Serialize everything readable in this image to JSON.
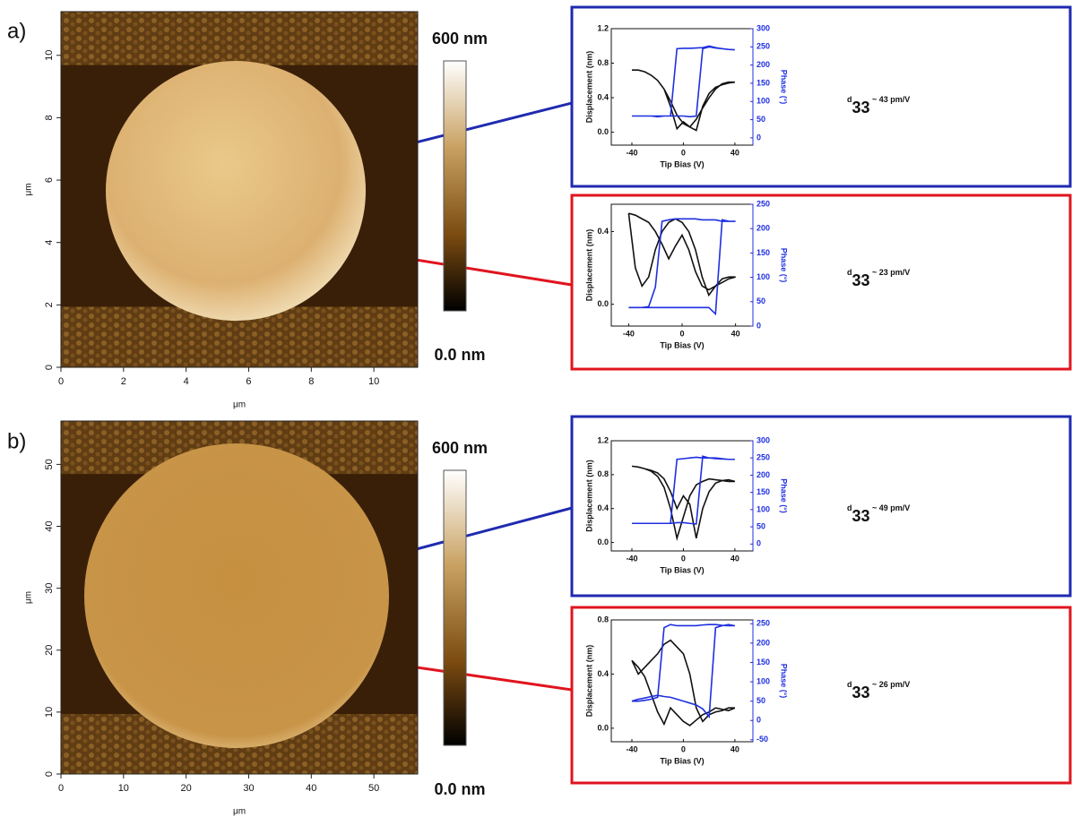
{
  "chart_data": [
    {
      "type": "image",
      "panel_label": "a)",
      "xlabel": "μm",
      "ylabel": "μm",
      "xlim": [
        0,
        11.4
      ],
      "ylim": [
        0,
        11.4
      ],
      "xticks": [
        0,
        2,
        4,
        6,
        8,
        10
      ],
      "yticks": [
        0,
        2,
        4,
        6,
        8,
        10
      ],
      "colorbar_top": "600 nm",
      "colorbar_bottom": "0.0 nm"
    },
    {
      "type": "line",
      "xlabel": "Tip Bias (V)",
      "ylabel": "Displacement (nm)",
      "y2label": "Phase (°)",
      "annotation": {
        "main": "d",
        "sub": "33",
        "rest": " ~ 43 pm/V"
      },
      "xlim": [
        -56,
        54
      ],
      "xticks": [
        -40,
        0,
        40
      ],
      "ylim": [
        -0.15,
        1.2
      ],
      "yticks": [
        {
          "value": 0,
          "label": "0.0"
        },
        0.4,
        0.8,
        1.2
      ],
      "y2lim": [
        -20,
        300
      ],
      "y2ticks": [
        0,
        50,
        100,
        150,
        200,
        250,
        300
      ],
      "x": [
        -40,
        -35,
        -30,
        -25,
        -20,
        -15,
        -10,
        -5,
        0,
        5,
        10,
        15,
        20,
        25,
        30,
        35,
        40,
        35,
        30,
        25,
        20,
        15,
        10,
        5,
        0,
        -5,
        -10,
        -15,
        -20,
        -25,
        -30,
        -35,
        -40
      ],
      "series": [
        {
          "color": "#111111",
          "values": [
            0.72,
            0.72,
            0.7,
            0.66,
            0.6,
            0.5,
            0.36,
            0.2,
            0.1,
            0.06,
            0.02,
            0.3,
            0.45,
            0.52,
            0.55,
            0.57,
            0.58,
            0.58,
            0.56,
            0.5,
            0.4,
            0.28,
            0.15,
            0.06,
            0.12,
            0.04,
            0.3,
            0.5,
            0.6,
            0.66,
            0.7,
            0.72,
            0.72
          ]
        },
        {
          "color": "#1f2fe0",
          "axis": "y2",
          "values": [
            60,
            60,
            60,
            60,
            60,
            60,
            60,
            60,
            60,
            58,
            60,
            245,
            250,
            247,
            245,
            243,
            242,
            243,
            245,
            248,
            252,
            248,
            247,
            246,
            246,
            245,
            60,
            60,
            58,
            60,
            60,
            60,
            60
          ]
        }
      ]
    },
    {
      "type": "line",
      "xlabel": "Tip Bias (V)",
      "ylabel": "Displacement (nm)",
      "y2label": "Phase (°)",
      "annotation": {
        "main": "d",
        "sub": "33",
        "rest": " ~ 23 pm/V"
      },
      "xlim": [
        -53,
        53
      ],
      "xticks": [
        -40,
        0,
        40
      ],
      "ylim": [
        -0.12,
        0.55
      ],
      "yticks": [
        {
          "value": 0,
          "label": "0.0"
        },
        0.4
      ],
      "y2lim": [
        0,
        250
      ],
      "y2ticks": [
        0,
        50,
        100,
        150,
        200,
        250
      ],
      "x": [
        -40,
        -35,
        -30,
        -25,
        -20,
        -15,
        -10,
        -5,
        0,
        5,
        10,
        15,
        20,
        25,
        30,
        35,
        40,
        35,
        30,
        25,
        20,
        15,
        10,
        5,
        0,
        -5,
        -10,
        -15,
        -20,
        -25,
        -30,
        -35,
        -40
      ],
      "series": [
        {
          "color": "#111111",
          "values": [
            0.5,
            0.49,
            0.47,
            0.45,
            0.4,
            0.33,
            0.25,
            0.32,
            0.38,
            0.3,
            0.18,
            0.1,
            0.08,
            0.1,
            0.12,
            0.14,
            0.15,
            0.15,
            0.14,
            0.1,
            0.05,
            0.15,
            0.3,
            0.4,
            0.45,
            0.47,
            0.45,
            0.4,
            0.3,
            0.15,
            0.1,
            0.2,
            0.5
          ]
        },
        {
          "color": "#1f2fe0",
          "axis": "y2",
          "values": [
            38,
            38,
            38,
            38,
            38,
            38,
            38,
            38,
            38,
            38,
            38,
            38,
            38,
            25,
            218,
            215,
            215,
            215,
            215,
            218,
            218,
            218,
            220,
            220,
            220,
            220,
            218,
            215,
            80,
            40,
            38,
            38,
            38
          ]
        }
      ]
    },
    {
      "type": "image",
      "panel_label": "b)",
      "xlabel": "μm",
      "ylabel": "μm",
      "xlim": [
        0,
        57
      ],
      "ylim": [
        0,
        57
      ],
      "xticks": [
        0,
        10,
        20,
        30,
        40,
        50
      ],
      "yticks": [
        0,
        10,
        20,
        30,
        40,
        50
      ],
      "colorbar_top": "600 nm",
      "colorbar_bottom": "0.0 nm"
    },
    {
      "type": "line",
      "xlabel": "Tip Bias (V)",
      "ylabel": "Displacement (nm)",
      "y2label": "Phase (°)",
      "annotation": {
        "main": "d",
        "sub": "33",
        "rest": " ~ 49 pm/V"
      },
      "xlim": [
        -56,
        54
      ],
      "xticks": [
        -40,
        0,
        40
      ],
      "ylim": [
        -0.1,
        1.2
      ],
      "yticks": [
        {
          "value": 0,
          "label": "0.0"
        },
        0.4,
        0.8,
        1.2
      ],
      "y2lim": [
        -20,
        300
      ],
      "y2ticks": [
        0,
        50,
        100,
        150,
        200,
        250,
        300
      ],
      "x": [
        -40,
        -35,
        -30,
        -25,
        -20,
        -15,
        -10,
        -5,
        0,
        5,
        10,
        15,
        20,
        25,
        30,
        35,
        40,
        35,
        30,
        25,
        20,
        15,
        10,
        5,
        0,
        -5,
        -10,
        -15,
        -20,
        -25,
        -30,
        -35,
        -40
      ],
      "series": [
        {
          "color": "#111111",
          "values": [
            0.9,
            0.89,
            0.87,
            0.85,
            0.82,
            0.75,
            0.6,
            0.4,
            0.55,
            0.45,
            0.05,
            0.4,
            0.6,
            0.7,
            0.73,
            0.74,
            0.72,
            0.72,
            0.73,
            0.74,
            0.75,
            0.72,
            0.68,
            0.55,
            0.3,
            0.05,
            0.4,
            0.65,
            0.78,
            0.84,
            0.87,
            0.89,
            0.9
          ]
        },
        {
          "color": "#1f2fe0",
          "axis": "y2",
          "values": [
            60,
            60,
            60,
            60,
            60,
            60,
            60,
            62,
            62,
            60,
            58,
            255,
            250,
            250,
            248,
            246,
            246,
            246,
            247,
            248,
            250,
            250,
            252,
            250,
            248,
            246,
            60,
            60,
            60,
            60,
            60,
            60,
            60
          ]
        }
      ]
    },
    {
      "type": "line",
      "xlabel": "Tip Bias (V)",
      "ylabel": "Displacement (nm)",
      "y2label": "Phase (°)",
      "annotation": {
        "main": "d",
        "sub": "33",
        "rest": " ~ 26 pm/V"
      },
      "xlim": [
        -56,
        54
      ],
      "xticks": [
        -40,
        0,
        40
      ],
      "ylim": [
        -0.1,
        0.8
      ],
      "yticks": [
        {
          "value": 0,
          "label": "0.0"
        },
        0.4,
        0.8
      ],
      "y2lim": [
        -55,
        260
      ],
      "y2ticks": [
        -50,
        0,
        50,
        100,
        150,
        200,
        250
      ],
      "x": [
        -40,
        -35,
        -30,
        -25,
        -20,
        -15,
        -10,
        -5,
        0,
        5,
        10,
        15,
        20,
        25,
        30,
        35,
        40,
        35,
        30,
        25,
        20,
        15,
        10,
        5,
        0,
        -5,
        -10,
        -15,
        -20,
        -25,
        -30,
        -35,
        -40
      ],
      "series": [
        {
          "color": "#111111",
          "values": [
            0.5,
            0.45,
            0.38,
            0.25,
            0.12,
            0.03,
            0.15,
            0.1,
            0.05,
            0.02,
            0.06,
            0.1,
            0.12,
            0.15,
            0.14,
            0.13,
            0.15,
            0.15,
            0.13,
            0.12,
            0.1,
            0.05,
            0.15,
            0.4,
            0.55,
            0.6,
            0.65,
            0.62,
            0.55,
            0.5,
            0.45,
            0.4,
            0.5
          ]
        },
        {
          "color": "#1f2fe0",
          "axis": "y2",
          "values": [
            50,
            55,
            58,
            62,
            65,
            62,
            60,
            55,
            50,
            45,
            40,
            30,
            10,
            240,
            245,
            248,
            245,
            245,
            246,
            248,
            248,
            247,
            245,
            245,
            245,
            245,
            248,
            240,
            60,
            55,
            52,
            50,
            50
          ]
        }
      ]
    }
  ]
}
